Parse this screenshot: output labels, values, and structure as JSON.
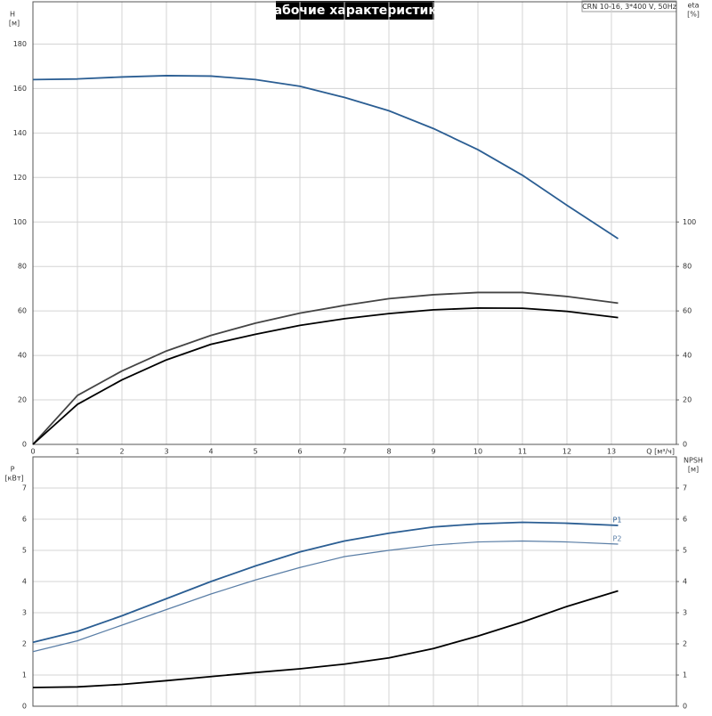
{
  "chart_data": [
    {
      "type": "line",
      "title": "Рабочие характеристики",
      "annotations": [
        "CRN 10-16, 3*400 V, 50Hz"
      ],
      "ylabel": "H",
      "ylabel_unit": "[м]",
      "y2label": "eta",
      "y2label_unit": "[%]",
      "xlabel": "Q [м³/ч]",
      "x": [
        0,
        1,
        2,
        3,
        4,
        5,
        6,
        7,
        8,
        9,
        10,
        11,
        12,
        13.15
      ],
      "series": [
        {
          "color": "#2b5e93",
          "values": [
            164,
            164.3,
            165.2,
            165.8,
            165.6,
            164,
            161,
            156,
            150,
            142,
            132.5,
            121,
            107.5,
            92.5
          ]
        },
        {
          "color": "#444444",
          "axis": "y2",
          "values": [
            0,
            22,
            33,
            42,
            49,
            54.5,
            59,
            62.5,
            65.5,
            67.3,
            68.3,
            68.3,
            66.5,
            63.5
          ]
        },
        {
          "color": "#000000",
          "axis": "y2",
          "values": [
            0,
            18,
            29,
            38,
            45,
            49.5,
            53.5,
            56.5,
            58.8,
            60.5,
            61.3,
            61.2,
            59.8,
            57
          ]
        }
      ],
      "xlim": [
        0,
        14.46
      ],
      "xticks": [
        0,
        1,
        2,
        3,
        4,
        5,
        6,
        7,
        8,
        9,
        10,
        11,
        12,
        13
      ],
      "ylim": [
        0,
        199
      ],
      "yticks": [
        0,
        20,
        40,
        60,
        80,
        100,
        120,
        140,
        160,
        180
      ],
      "y2lim": [
        0,
        199
      ],
      "y2ticks": [
        0,
        20,
        40,
        60,
        80,
        100
      ],
      "grid": true
    },
    {
      "type": "line",
      "ylabel": "P",
      "ylabel_unit": "[кВт]",
      "y2label": "NPSH",
      "y2label_unit": "[м]",
      "x": [
        0,
        1,
        2,
        3,
        4,
        5,
        6,
        7,
        8,
        9,
        10,
        11,
        12,
        13.15
      ],
      "series": [
        {
          "name": "P1",
          "color": "#2b5e93",
          "values": [
            2.05,
            2.4,
            2.9,
            3.45,
            4.0,
            4.5,
            4.95,
            5.3,
            5.55,
            5.75,
            5.85,
            5.9,
            5.87,
            5.8
          ]
        },
        {
          "name": "P2",
          "color": "#5a7ea6",
          "values": [
            1.75,
            2.1,
            2.6,
            3.1,
            3.6,
            4.05,
            4.45,
            4.8,
            5.0,
            5.17,
            5.27,
            5.3,
            5.27,
            5.2
          ]
        },
        {
          "color": "#000000",
          "axis": "y2",
          "values": [
            0.6,
            0.62,
            0.7,
            0.82,
            0.95,
            1.08,
            1.2,
            1.35,
            1.55,
            1.85,
            2.25,
            2.7,
            3.2,
            3.7
          ]
        }
      ],
      "xlim": [
        0,
        14.46
      ],
      "xticks": [
        0,
        1,
        2,
        3,
        4,
        5,
        6,
        7,
        8,
        9,
        10,
        11,
        12,
        13
      ],
      "ylim": [
        0,
        8
      ],
      "yticks": [
        0,
        1,
        2,
        3,
        4,
        5,
        6,
        7
      ],
      "y2lim": [
        0,
        8
      ],
      "y2ticks": [
        0,
        1,
        2,
        3,
        4,
        5,
        6,
        7
      ],
      "grid": true
    }
  ]
}
